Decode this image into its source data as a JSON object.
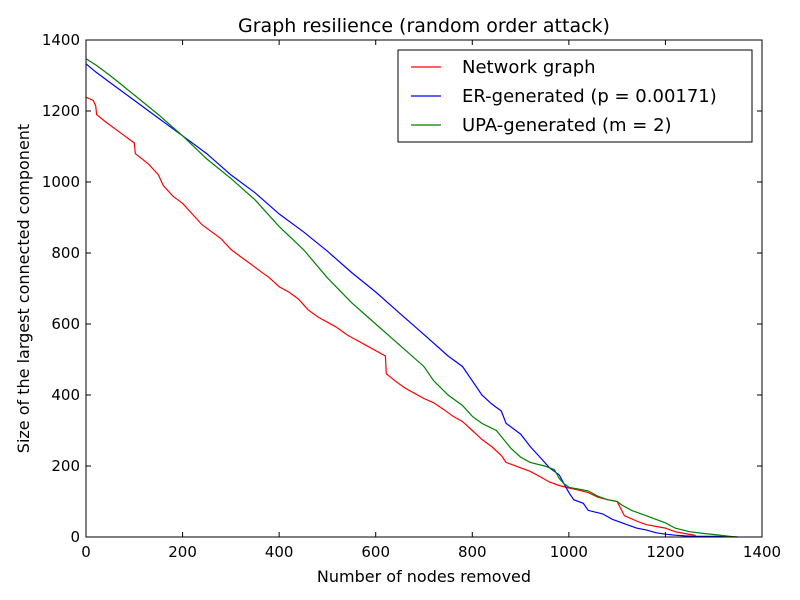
{
  "chart_data": {
    "type": "line",
    "title": "Graph resilience (random order attack)",
    "xlabel": "Number of nodes removed",
    "ylabel": "Size of the largest connected component",
    "xlim": [
      0,
      1400
    ],
    "ylim": [
      0,
      1400
    ],
    "xticks": [
      0,
      200,
      400,
      600,
      800,
      1000,
      1200,
      1400
    ],
    "yticks": [
      0,
      200,
      400,
      600,
      800,
      1000,
      1200,
      1400
    ],
    "grid": false,
    "legend_position": "top-right",
    "series": [
      {
        "name": "Network graph",
        "color": "#ff0000",
        "points": [
          [
            0,
            1239
          ],
          [
            15,
            1230
          ],
          [
            20,
            1215
          ],
          [
            22,
            1190
          ],
          [
            40,
            1170
          ],
          [
            60,
            1150
          ],
          [
            80,
            1130
          ],
          [
            100,
            1110
          ],
          [
            102,
            1080
          ],
          [
            130,
            1050
          ],
          [
            150,
            1020
          ],
          [
            160,
            990
          ],
          [
            180,
            960
          ],
          [
            200,
            940
          ],
          [
            220,
            910
          ],
          [
            240,
            880
          ],
          [
            260,
            860
          ],
          [
            280,
            840
          ],
          [
            300,
            810
          ],
          [
            320,
            790
          ],
          [
            340,
            770
          ],
          [
            360,
            750
          ],
          [
            380,
            730
          ],
          [
            400,
            705
          ],
          [
            420,
            690
          ],
          [
            440,
            670
          ],
          [
            460,
            640
          ],
          [
            480,
            620
          ],
          [
            500,
            605
          ],
          [
            520,
            590
          ],
          [
            540,
            570
          ],
          [
            560,
            555
          ],
          [
            580,
            540
          ],
          [
            600,
            525
          ],
          [
            620,
            510
          ],
          [
            622,
            460
          ],
          [
            640,
            440
          ],
          [
            660,
            420
          ],
          [
            680,
            405
          ],
          [
            700,
            390
          ],
          [
            720,
            378
          ],
          [
            740,
            360
          ],
          [
            760,
            340
          ],
          [
            780,
            325
          ],
          [
            800,
            300
          ],
          [
            820,
            275
          ],
          [
            840,
            255
          ],
          [
            860,
            230
          ],
          [
            870,
            210
          ],
          [
            900,
            195
          ],
          [
            920,
            185
          ],
          [
            940,
            170
          ],
          [
            960,
            155
          ],
          [
            980,
            145
          ],
          [
            1000,
            138
          ],
          [
            1020,
            132
          ],
          [
            1040,
            125
          ],
          [
            1060,
            112
          ],
          [
            1080,
            105
          ],
          [
            1100,
            100
          ],
          [
            1115,
            60
          ],
          [
            1140,
            45
          ],
          [
            1160,
            35
          ],
          [
            1180,
            30
          ],
          [
            1200,
            25
          ],
          [
            1220,
            15
          ],
          [
            1240,
            10
          ],
          [
            1260,
            5
          ],
          [
            1265,
            0
          ]
        ]
      },
      {
        "name": "ER-generated (p = 0.00171)",
        "color": "#0000ff",
        "points": [
          [
            0,
            1333
          ],
          [
            20,
            1310
          ],
          [
            50,
            1280
          ],
          [
            100,
            1230
          ],
          [
            150,
            1180
          ],
          [
            200,
            1130
          ],
          [
            250,
            1080
          ],
          [
            300,
            1020
          ],
          [
            350,
            970
          ],
          [
            400,
            910
          ],
          [
            450,
            860
          ],
          [
            500,
            805
          ],
          [
            550,
            745
          ],
          [
            600,
            690
          ],
          [
            650,
            630
          ],
          [
            700,
            570
          ],
          [
            750,
            510
          ],
          [
            780,
            480
          ],
          [
            800,
            440
          ],
          [
            820,
            400
          ],
          [
            840,
            375
          ],
          [
            860,
            355
          ],
          [
            870,
            320
          ],
          [
            900,
            290
          ],
          [
            920,
            255
          ],
          [
            940,
            225
          ],
          [
            960,
            195
          ],
          [
            980,
            175
          ],
          [
            990,
            150
          ],
          [
            1000,
            125
          ],
          [
            1010,
            105
          ],
          [
            1030,
            95
          ],
          [
            1040,
            75
          ],
          [
            1070,
            65
          ],
          [
            1090,
            50
          ],
          [
            1110,
            40
          ],
          [
            1140,
            25
          ],
          [
            1160,
            20
          ],
          [
            1180,
            12
          ],
          [
            1200,
            8
          ],
          [
            1220,
            5
          ],
          [
            1240,
            3
          ],
          [
            1260,
            2
          ],
          [
            1300,
            2
          ],
          [
            1330,
            1
          ],
          [
            1350,
            0
          ]
        ]
      },
      {
        "name": "UPA-generated (m = 2)",
        "color": "#008000",
        "points": [
          [
            0,
            1347
          ],
          [
            20,
            1330
          ],
          [
            50,
            1300
          ],
          [
            100,
            1245
          ],
          [
            150,
            1190
          ],
          [
            200,
            1130
          ],
          [
            250,
            1065
          ],
          [
            300,
            1010
          ],
          [
            350,
            950
          ],
          [
            400,
            875
          ],
          [
            450,
            810
          ],
          [
            500,
            730
          ],
          [
            550,
            660
          ],
          [
            600,
            600
          ],
          [
            650,
            540
          ],
          [
            700,
            480
          ],
          [
            720,
            440
          ],
          [
            750,
            400
          ],
          [
            780,
            370
          ],
          [
            800,
            340
          ],
          [
            820,
            320
          ],
          [
            850,
            300
          ],
          [
            880,
            250
          ],
          [
            900,
            225
          ],
          [
            920,
            210
          ],
          [
            950,
            200
          ],
          [
            970,
            190
          ],
          [
            980,
            165
          ],
          [
            990,
            150
          ],
          [
            1000,
            140
          ],
          [
            1020,
            135
          ],
          [
            1040,
            130
          ],
          [
            1060,
            115
          ],
          [
            1080,
            105
          ],
          [
            1100,
            100
          ],
          [
            1110,
            90
          ],
          [
            1130,
            75
          ],
          [
            1160,
            60
          ],
          [
            1180,
            50
          ],
          [
            1200,
            40
          ],
          [
            1220,
            25
          ],
          [
            1250,
            15
          ],
          [
            1280,
            10
          ],
          [
            1300,
            7
          ],
          [
            1320,
            4
          ],
          [
            1345,
            0
          ]
        ]
      }
    ]
  }
}
